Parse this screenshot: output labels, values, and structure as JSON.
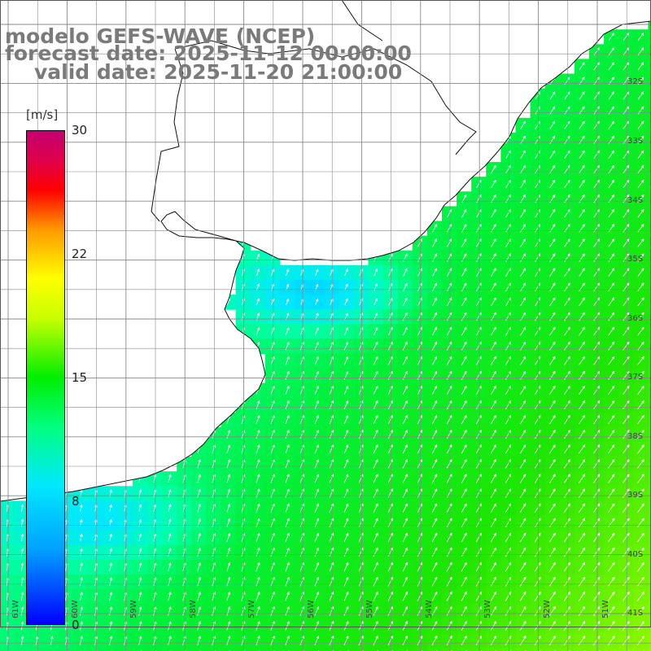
{
  "header": {
    "line1": "modelo GEFS-WAVE (NCEP)",
    "line2": "forecast date: 2025-11-12 00:00:00",
    "line3": "valid date: 2025-11-20 21:00:00"
  },
  "colorbar": {
    "unit": "[m/s]",
    "ticks": [
      "30",
      "22",
      "15",
      "8",
      "0"
    ],
    "colors": [
      "#0000ff",
      "#00a0ff",
      "#00e8ff",
      "#00ff80",
      "#00ee00",
      "#c8ff00",
      "#ffff00",
      "#ff9a00",
      "#ff0000",
      "#c00070"
    ]
  },
  "map": {
    "lat_labels": [
      "32S",
      "33S",
      "34S",
      "35S",
      "36S",
      "37S",
      "38S",
      "39S",
      "40S",
      "41S"
    ],
    "lon_labels": [
      "61W",
      "60W",
      "59W",
      "58W",
      "57W",
      "56W",
      "55W",
      "54W",
      "53W",
      "52W",
      "51W"
    ],
    "land_color": "#ffffff",
    "grid_color": "#888888"
  }
}
